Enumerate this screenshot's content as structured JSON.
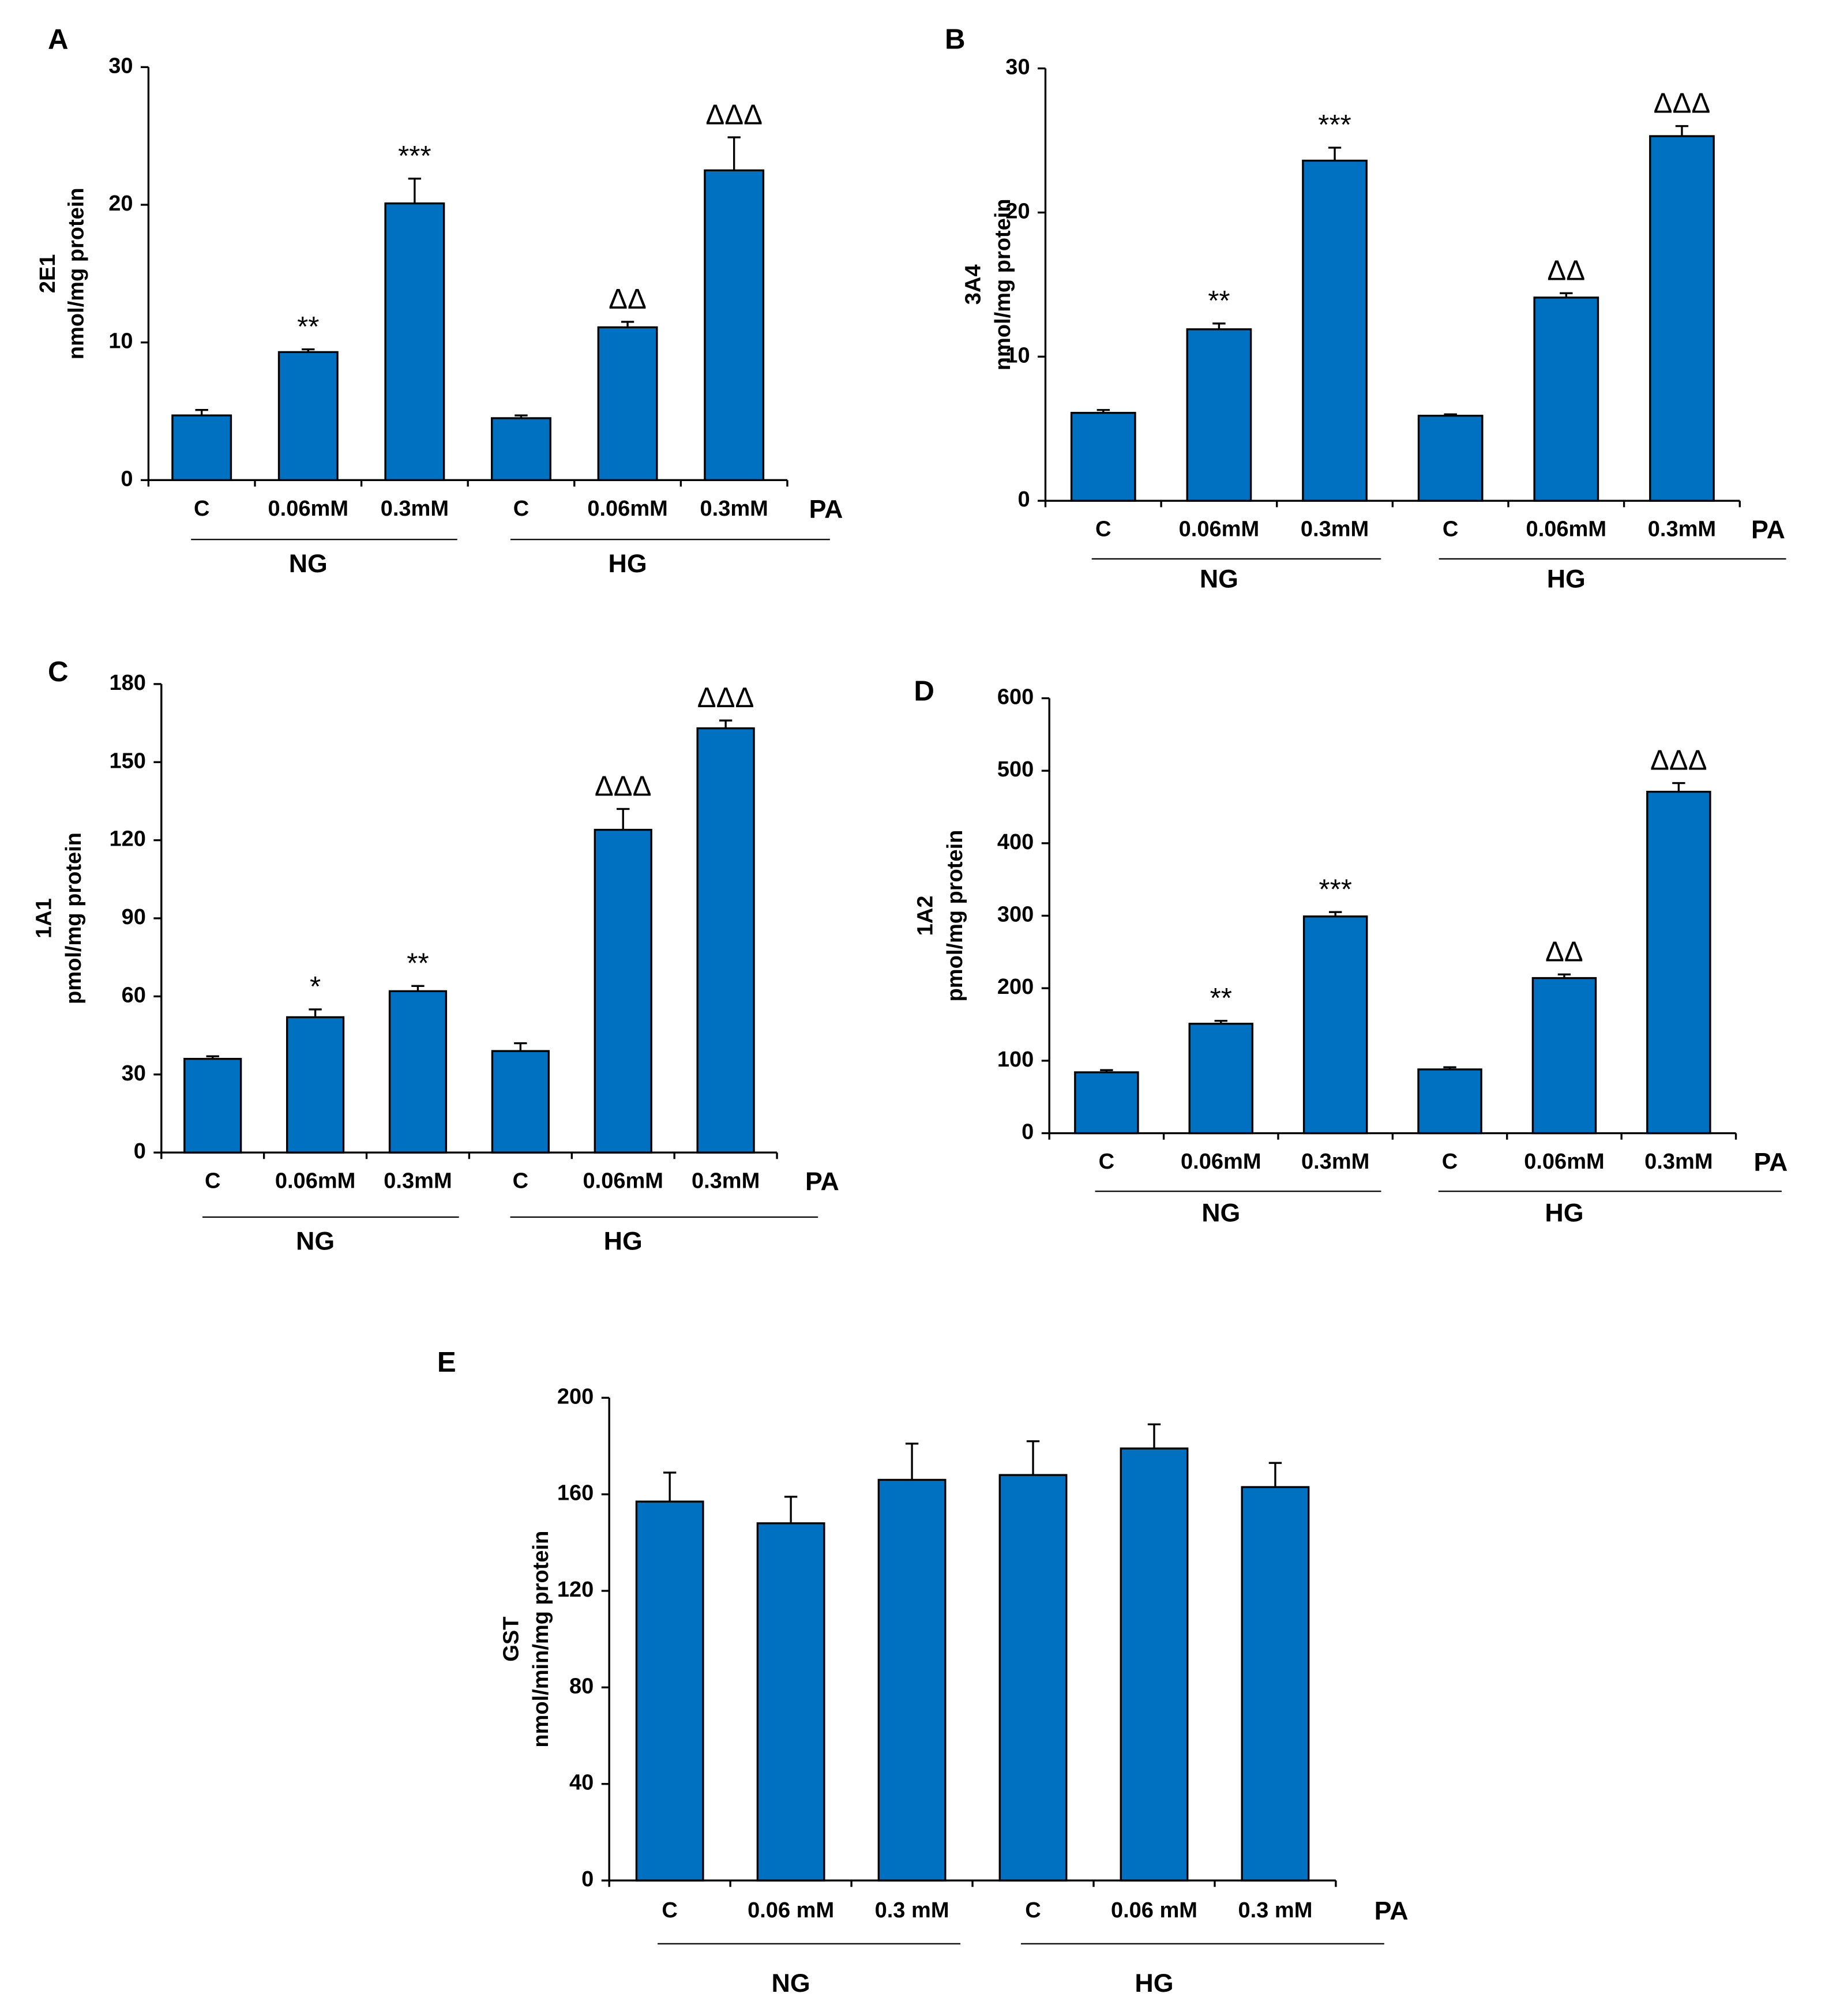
{
  "chart_data": [
    {
      "type": "bar",
      "panel": "A",
      "ylabel": [
        "2E1",
        "nmol/mg protein"
      ],
      "xlabel": "PA",
      "color": "#0070c0",
      "categories": [
        "C",
        "0.06mM",
        "0.3mM",
        "C",
        "0.06mM",
        "0.3mM"
      ],
      "groups": [
        "NG",
        "HG"
      ],
      "values": [
        4.7,
        9.3,
        20.1,
        4.5,
        11.1,
        22.5
      ],
      "errors": [
        0.4,
        0.2,
        1.8,
        0.2,
        0.4,
        2.4
      ],
      "annotations": [
        null,
        "**",
        "***",
        null,
        "ΔΔ",
        "ΔΔΔ"
      ],
      "ylim": [
        0,
        30
      ],
      "yticks": [
        0,
        10,
        20,
        30
      ]
    },
    {
      "type": "bar",
      "panel": "B",
      "ylabel": [
        "3A4",
        "nmol/mg protein"
      ],
      "xlabel": "PA",
      "color": "#0070c0",
      "categories": [
        "C",
        "0.06mM",
        "0.3mM",
        "C",
        "0.06mM",
        "0.3mM"
      ],
      "groups": [
        "NG",
        "HG"
      ],
      "values": [
        6.1,
        11.9,
        23.6,
        5.9,
        14.1,
        25.3
      ],
      "errors": [
        0.2,
        0.4,
        0.9,
        0.1,
        0.3,
        0.7
      ],
      "annotations": [
        null,
        "**",
        "***",
        null,
        "ΔΔ",
        "ΔΔΔ"
      ],
      "ylim": [
        0,
        30
      ],
      "yticks": [
        0,
        10,
        20,
        30
      ]
    },
    {
      "type": "bar",
      "panel": "C",
      "ylabel": [
        "1A1",
        "pmol/mg protein"
      ],
      "xlabel": "PA",
      "color": "#0070c0",
      "categories": [
        "C",
        "0.06mM",
        "0.3mM",
        "C",
        "0.06mM",
        "0.3mM"
      ],
      "groups": [
        "NG",
        "HG"
      ],
      "values": [
        36,
        52,
        62,
        39,
        124,
        163
      ],
      "errors": [
        1,
        3,
        2,
        3,
        8,
        3
      ],
      "annotations": [
        null,
        "*",
        "**",
        null,
        "ΔΔΔ",
        "ΔΔΔ"
      ],
      "ylim": [
        0,
        180
      ],
      "yticks": [
        0,
        30,
        60,
        90,
        120,
        150,
        180
      ]
    },
    {
      "type": "bar",
      "panel": "D",
      "ylabel": [
        "1A2",
        "pmol/mg protein"
      ],
      "xlabel": "PA",
      "color": "#0070c0",
      "categories": [
        "C",
        "0.06mM",
        "0.3mM",
        "C",
        "0.06mM",
        "0.3mM"
      ],
      "groups": [
        "NG",
        "HG"
      ],
      "values": [
        84,
        151,
        299,
        88,
        214,
        471
      ],
      "errors": [
        3,
        4,
        6,
        3,
        5,
        12
      ],
      "annotations": [
        null,
        "**",
        "***",
        null,
        "ΔΔ",
        "ΔΔΔ"
      ],
      "ylim": [
        0,
        600
      ],
      "yticks": [
        0,
        100,
        200,
        300,
        400,
        500,
        600
      ]
    },
    {
      "type": "bar",
      "panel": "E",
      "ylabel": [
        "GST",
        "nmol/min/mg protein"
      ],
      "xlabel": "PA",
      "color": "#0070c0",
      "categories": [
        "C",
        "0.06 mM",
        "0.3 mM",
        "C",
        "0.06 mM",
        "0.3 mM"
      ],
      "groups": [
        "NG",
        "HG"
      ],
      "values": [
        157,
        148,
        166,
        168,
        179,
        163
      ],
      "errors": [
        12,
        11,
        15,
        14,
        10,
        10
      ],
      "ylim": [
        0,
        200
      ],
      "yticks": [
        0,
        40,
        80,
        120,
        160,
        200
      ]
    }
  ]
}
